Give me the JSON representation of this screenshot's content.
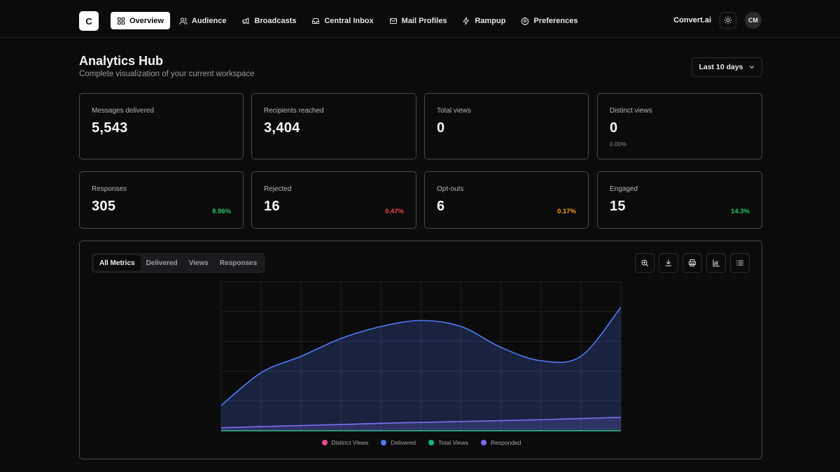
{
  "nav": {
    "logo": "C",
    "items": [
      {
        "label": "Overview",
        "icon": "grid-icon",
        "active": true
      },
      {
        "label": "Audience",
        "icon": "users-icon"
      },
      {
        "label": "Broadcasts",
        "icon": "megaphone-icon"
      },
      {
        "label": "Central Inbox",
        "icon": "inbox-icon"
      },
      {
        "label": "Mail Profiles",
        "icon": "mail-icon"
      },
      {
        "label": "Rampup",
        "icon": "bolt-icon"
      },
      {
        "label": "Preferences",
        "icon": "gear-icon"
      }
    ],
    "brand": "Convert.ai",
    "avatar": "CM"
  },
  "header": {
    "title": "Analytics Hub",
    "subtitle": "Complete visualization of your current workspace",
    "range": "Last 10 days"
  },
  "stats": [
    {
      "label": "Messages delivered",
      "value": "5,543"
    },
    {
      "label": "Recipients reached",
      "value": "3,404"
    },
    {
      "label": "Total views",
      "value": "0"
    },
    {
      "label": "Distinct views",
      "value": "0",
      "sub": "0.00%"
    },
    {
      "label": "Responses",
      "value": "305",
      "pct": "8.96%",
      "pct_color": "#22c55e"
    },
    {
      "label": "Rejected",
      "value": "16",
      "pct": "0.47%",
      "pct_color": "#ef4444"
    },
    {
      "label": "Opt-outs",
      "value": "6",
      "pct": "0.17%",
      "pct_color": "#f59e0b"
    },
    {
      "label": "Engaged",
      "value": "15",
      "pct": "14.3%",
      "pct_color": "#22c55e"
    }
  ],
  "chart_panel": {
    "tabs": [
      "All Metrics",
      "Delivered",
      "Views",
      "Responses"
    ],
    "active_tab": "All Metrics",
    "tools": [
      "zoom-in-icon",
      "download-icon",
      "print-icon",
      "bar-chart-icon",
      "list-icon"
    ]
  },
  "chart_data": {
    "type": "area",
    "x": [
      0,
      1,
      2,
      3,
      4,
      5,
      6,
      7,
      8,
      9,
      10
    ],
    "ylim": [
      0,
      100
    ],
    "grid": true,
    "legend_position": "bottom",
    "series": [
      {
        "name": "Distinct Views",
        "color": "#ec4899",
        "values": [
          0,
          0,
          0,
          0,
          0,
          0,
          0,
          0,
          0,
          0,
          0
        ]
      },
      {
        "name": "Delivered",
        "color": "#4f7cf5",
        "values": [
          17,
          39,
          50,
          62,
          70,
          74,
          70,
          56,
          47,
          50,
          83
        ]
      },
      {
        "name": "Total Views",
        "color": "#10b981",
        "values": [
          0,
          0,
          0,
          0,
          0,
          0,
          0,
          0,
          0,
          0,
          0
        ]
      },
      {
        "name": "Responded",
        "color": "#7c6ef2",
        "values": [
          2,
          2.8,
          3.5,
          4.2,
          5,
          5.6,
          6.2,
          6.8,
          7.4,
          8.2,
          9
        ]
      }
    ]
  }
}
